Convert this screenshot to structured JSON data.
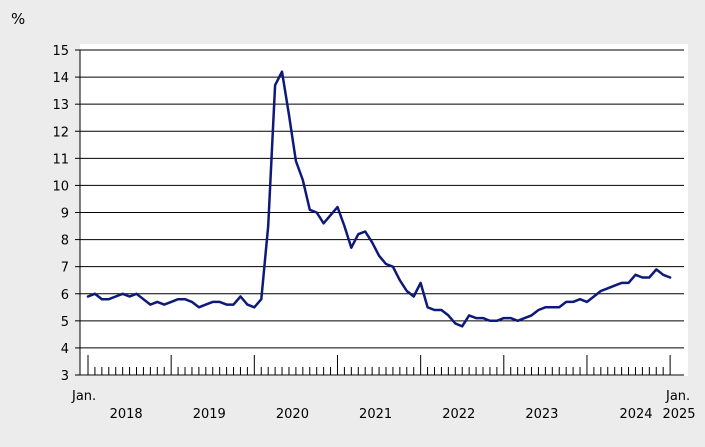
{
  "chart_data": {
    "type": "line",
    "ylabel": "%",
    "ylim": [
      3,
      15
    ],
    "yticks": [
      3,
      4,
      5,
      6,
      7,
      8,
      9,
      10,
      11,
      12,
      13,
      14,
      15
    ],
    "x_start_label": "Jan.",
    "x_end_label": "Jan.",
    "year_labels": [
      "2018",
      "2019",
      "2020",
      "2021",
      "2022",
      "2023",
      "2024",
      "2025"
    ],
    "line_color": "#0d1a7a",
    "background": "#ffffff",
    "series": [
      {
        "x": [
          "2018-01",
          "2018-02",
          "2018-03",
          "2018-04",
          "2018-05",
          "2018-06",
          "2018-07",
          "2018-08",
          "2018-09",
          "2018-10",
          "2018-11",
          "2018-12",
          "2019-01",
          "2019-02",
          "2019-03",
          "2019-04",
          "2019-05",
          "2019-06",
          "2019-07",
          "2019-08",
          "2019-09",
          "2019-10",
          "2019-11",
          "2019-12",
          "2020-01",
          "2020-02",
          "2020-03",
          "2020-04",
          "2020-05",
          "2020-06",
          "2020-07",
          "2020-08",
          "2020-09",
          "2020-10",
          "2020-11",
          "2020-12",
          "2021-01",
          "2021-02",
          "2021-03",
          "2021-04",
          "2021-05",
          "2021-06",
          "2021-07",
          "2021-08",
          "2021-09",
          "2021-10",
          "2021-11",
          "2021-12",
          "2022-01",
          "2022-02",
          "2022-03",
          "2022-04",
          "2022-05",
          "2022-06",
          "2022-07",
          "2022-08",
          "2022-09",
          "2022-10",
          "2022-11",
          "2022-12",
          "2023-01",
          "2023-02",
          "2023-03",
          "2023-04",
          "2023-05",
          "2023-06",
          "2023-07",
          "2023-08",
          "2023-09",
          "2023-10",
          "2023-11",
          "2023-12",
          "2024-01",
          "2024-02",
          "2024-03",
          "2024-04",
          "2024-05",
          "2024-06",
          "2024-07",
          "2024-08",
          "2024-09",
          "2024-10",
          "2024-11",
          "2024-12",
          "2025-01"
        ],
        "values": [
          5.9,
          6.0,
          5.8,
          5.8,
          5.9,
          6.0,
          5.9,
          6.0,
          5.8,
          5.6,
          5.7,
          5.6,
          5.7,
          5.8,
          5.8,
          5.7,
          5.5,
          5.6,
          5.7,
          5.7,
          5.6,
          5.6,
          5.9,
          5.6,
          5.5,
          5.8,
          8.5,
          13.7,
          14.2,
          12.6,
          10.9,
          10.2,
          9.1,
          9.0,
          8.6,
          8.9,
          9.2,
          8.5,
          7.7,
          8.2,
          8.3,
          7.9,
          7.4,
          7.1,
          7.0,
          6.5,
          6.1,
          5.9,
          6.4,
          5.5,
          5.4,
          5.4,
          5.2,
          4.9,
          4.8,
          5.2,
          5.1,
          5.1,
          5.0,
          5.0,
          5.1,
          5.1,
          5.0,
          5.1,
          5.2,
          5.4,
          5.5,
          5.5,
          5.5,
          5.7,
          5.7,
          5.8,
          5.7,
          5.9,
          6.1,
          6.2,
          6.3,
          6.4,
          6.4,
          6.7,
          6.6,
          6.6,
          6.9,
          6.7,
          6.6
        ]
      }
    ]
  }
}
